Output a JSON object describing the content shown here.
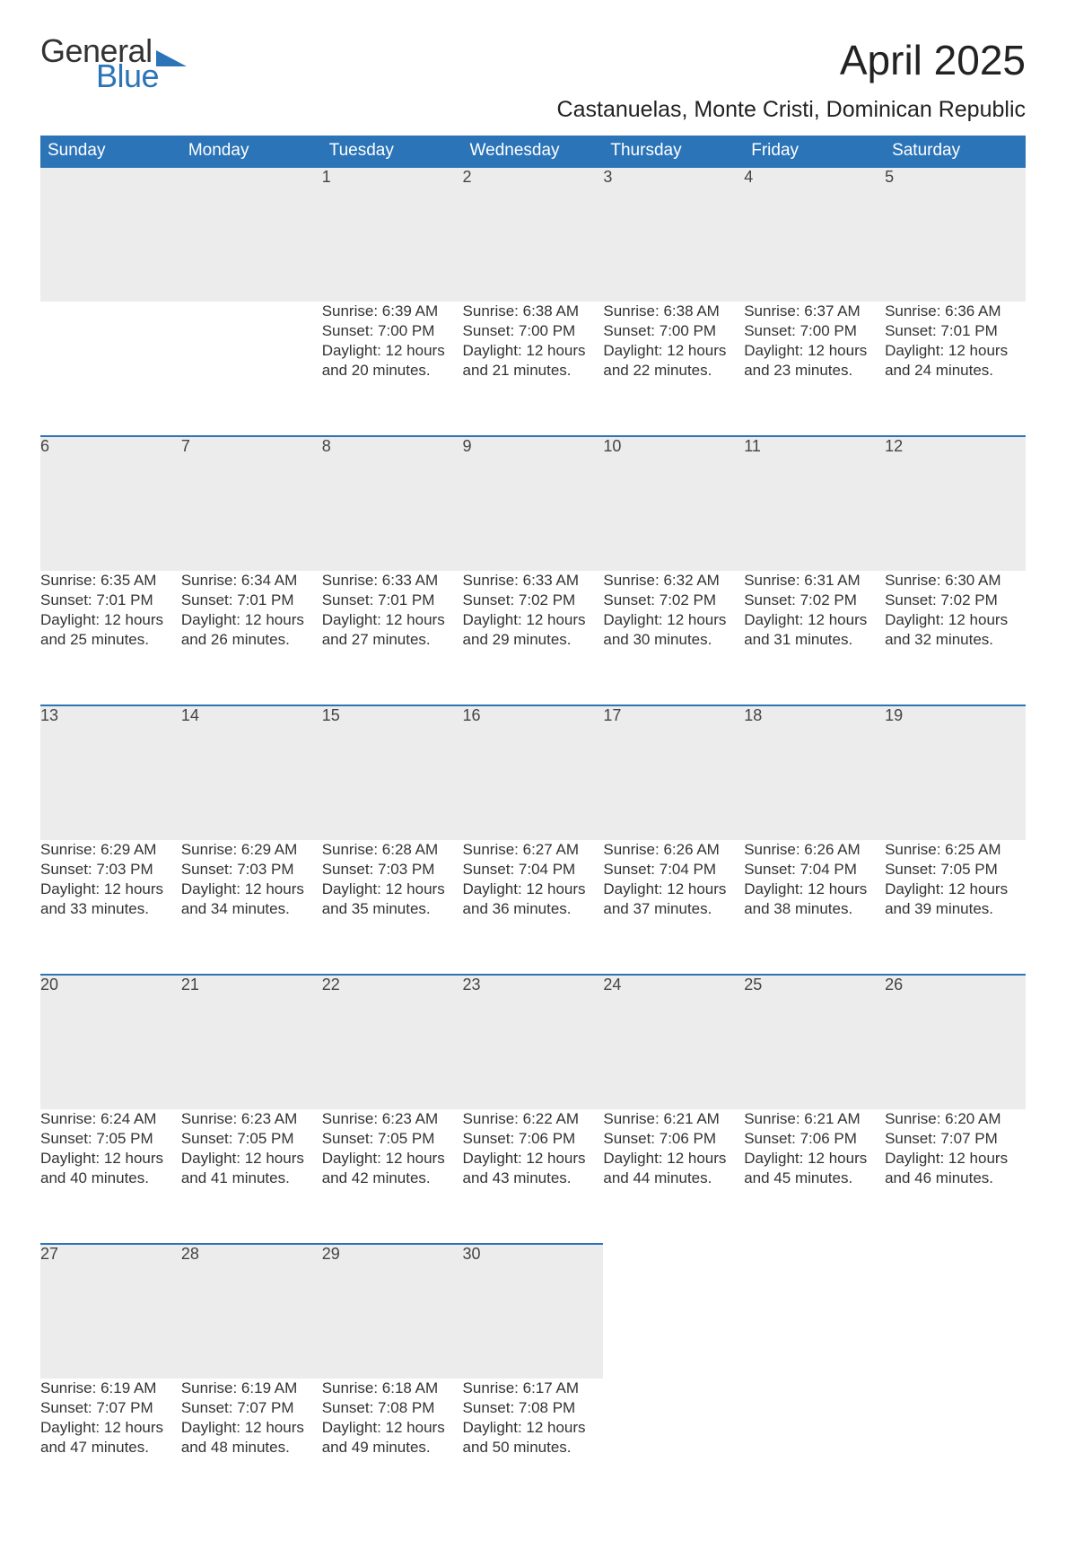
{
  "logo": {
    "word1": "General",
    "word2": "Blue",
    "shape_color": "#2b74b8"
  },
  "title": "April 2025",
  "subtitle": "Castanuelas, Monte Cristi, Dominican Republic",
  "colors": {
    "header_bg": "#2b74b8",
    "header_text": "#ffffff",
    "daynum_bg": "#ececec",
    "row_border": "#2b74b8",
    "body_text": "#333333",
    "background": "#ffffff"
  },
  "typography": {
    "title_fontsize": 46,
    "subtitle_fontsize": 25,
    "header_fontsize": 19,
    "daynum_fontsize": 18,
    "body_fontsize": 17,
    "logo_fontsize": 36,
    "font_family": "Arial"
  },
  "columns": [
    "Sunday",
    "Monday",
    "Tuesday",
    "Wednesday",
    "Thursday",
    "Friday",
    "Saturday"
  ],
  "weeks": [
    [
      null,
      null,
      {
        "day": "1",
        "sunrise": "6:39 AM",
        "sunset": "7:00 PM",
        "daylight": "12 hours and 20 minutes."
      },
      {
        "day": "2",
        "sunrise": "6:38 AM",
        "sunset": "7:00 PM",
        "daylight": "12 hours and 21 minutes."
      },
      {
        "day": "3",
        "sunrise": "6:38 AM",
        "sunset": "7:00 PM",
        "daylight": "12 hours and 22 minutes."
      },
      {
        "day": "4",
        "sunrise": "6:37 AM",
        "sunset": "7:00 PM",
        "daylight": "12 hours and 23 minutes."
      },
      {
        "day": "5",
        "sunrise": "6:36 AM",
        "sunset": "7:01 PM",
        "daylight": "12 hours and 24 minutes."
      }
    ],
    [
      {
        "day": "6",
        "sunrise": "6:35 AM",
        "sunset": "7:01 PM",
        "daylight": "12 hours and 25 minutes."
      },
      {
        "day": "7",
        "sunrise": "6:34 AM",
        "sunset": "7:01 PM",
        "daylight": "12 hours and 26 minutes."
      },
      {
        "day": "8",
        "sunrise": "6:33 AM",
        "sunset": "7:01 PM",
        "daylight": "12 hours and 27 minutes."
      },
      {
        "day": "9",
        "sunrise": "6:33 AM",
        "sunset": "7:02 PM",
        "daylight": "12 hours and 29 minutes."
      },
      {
        "day": "10",
        "sunrise": "6:32 AM",
        "sunset": "7:02 PM",
        "daylight": "12 hours and 30 minutes."
      },
      {
        "day": "11",
        "sunrise": "6:31 AM",
        "sunset": "7:02 PM",
        "daylight": "12 hours and 31 minutes."
      },
      {
        "day": "12",
        "sunrise": "6:30 AM",
        "sunset": "7:02 PM",
        "daylight": "12 hours and 32 minutes."
      }
    ],
    [
      {
        "day": "13",
        "sunrise": "6:29 AM",
        "sunset": "7:03 PM",
        "daylight": "12 hours and 33 minutes."
      },
      {
        "day": "14",
        "sunrise": "6:29 AM",
        "sunset": "7:03 PM",
        "daylight": "12 hours and 34 minutes."
      },
      {
        "day": "15",
        "sunrise": "6:28 AM",
        "sunset": "7:03 PM",
        "daylight": "12 hours and 35 minutes."
      },
      {
        "day": "16",
        "sunrise": "6:27 AM",
        "sunset": "7:04 PM",
        "daylight": "12 hours and 36 minutes."
      },
      {
        "day": "17",
        "sunrise": "6:26 AM",
        "sunset": "7:04 PM",
        "daylight": "12 hours and 37 minutes."
      },
      {
        "day": "18",
        "sunrise": "6:26 AM",
        "sunset": "7:04 PM",
        "daylight": "12 hours and 38 minutes."
      },
      {
        "day": "19",
        "sunrise": "6:25 AM",
        "sunset": "7:05 PM",
        "daylight": "12 hours and 39 minutes."
      }
    ],
    [
      {
        "day": "20",
        "sunrise": "6:24 AM",
        "sunset": "7:05 PM",
        "daylight": "12 hours and 40 minutes."
      },
      {
        "day": "21",
        "sunrise": "6:23 AM",
        "sunset": "7:05 PM",
        "daylight": "12 hours and 41 minutes."
      },
      {
        "day": "22",
        "sunrise": "6:23 AM",
        "sunset": "7:05 PM",
        "daylight": "12 hours and 42 minutes."
      },
      {
        "day": "23",
        "sunrise": "6:22 AM",
        "sunset": "7:06 PM",
        "daylight": "12 hours and 43 minutes."
      },
      {
        "day": "24",
        "sunrise": "6:21 AM",
        "sunset": "7:06 PM",
        "daylight": "12 hours and 44 minutes."
      },
      {
        "day": "25",
        "sunrise": "6:21 AM",
        "sunset": "7:06 PM",
        "daylight": "12 hours and 45 minutes."
      },
      {
        "day": "26",
        "sunrise": "6:20 AM",
        "sunset": "7:07 PM",
        "daylight": "12 hours and 46 minutes."
      }
    ],
    [
      {
        "day": "27",
        "sunrise": "6:19 AM",
        "sunset": "7:07 PM",
        "daylight": "12 hours and 47 minutes."
      },
      {
        "day": "28",
        "sunrise": "6:19 AM",
        "sunset": "7:07 PM",
        "daylight": "12 hours and 48 minutes."
      },
      {
        "day": "29",
        "sunrise": "6:18 AM",
        "sunset": "7:08 PM",
        "daylight": "12 hours and 49 minutes."
      },
      {
        "day": "30",
        "sunrise": "6:17 AM",
        "sunset": "7:08 PM",
        "daylight": "12 hours and 50 minutes."
      },
      null,
      null,
      null
    ]
  ],
  "labels": {
    "sunrise": "Sunrise:",
    "sunset": "Sunset:",
    "daylight": "Daylight:"
  }
}
